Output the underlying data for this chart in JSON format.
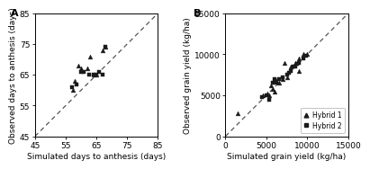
{
  "panel_A": {
    "title": "A",
    "xlabel": "Simulated days to anthesis (days)",
    "ylabel": "Observed days to anthesis (days)",
    "xlim": [
      45,
      85
    ],
    "ylim": [
      45,
      85
    ],
    "xticks": [
      45,
      55,
      65,
      75,
      85
    ],
    "yticks": [
      45,
      55,
      65,
      75,
      85
    ],
    "hybrid1_sim": [
      57.5,
      58,
      59,
      60,
      62,
      63,
      64,
      65,
      67,
      68
    ],
    "hybrid1_obs": [
      60,
      63,
      68,
      67,
      67,
      71,
      65,
      65,
      73,
      74
    ],
    "hybrid2_sim": [
      57,
      58.5,
      60,
      61,
      62.5,
      64,
      65,
      66,
      67,
      68
    ],
    "hybrid2_obs": [
      61,
      62,
      66,
      66,
      65,
      65,
      65,
      66,
      65,
      74
    ]
  },
  "panel_B": {
    "title": "B",
    "xlabel": "Simulated grain yield (kg/ha)",
    "ylabel": "Observed grain yield (kg/ha)",
    "xlim": [
      0,
      15000
    ],
    "ylim": [
      0,
      15000
    ],
    "xticks": [
      0,
      5000,
      10000,
      15000
    ],
    "yticks": [
      0,
      5000,
      10000,
      15000
    ],
    "hybrid1_sim": [
      1500,
      4600,
      5100,
      5400,
      5600,
      5800,
      6000,
      6200,
      6500,
      7000,
      7200,
      7500,
      8000,
      8500,
      9000,
      9000,
      9500,
      10000
    ],
    "hybrid1_obs": [
      2800,
      5000,
      5200,
      5000,
      6200,
      5800,
      5500,
      6800,
      6500,
      7000,
      9000,
      7200,
      8500,
      9000,
      9500,
      8000,
      10000,
      10000
    ],
    "hybrid2_sim": [
      4500,
      5000,
      5300,
      5800,
      6000,
      6200,
      6500,
      7000,
      7500,
      7800,
      8000,
      8300,
      8500,
      8800,
      9000,
      9500,
      9800
    ],
    "hybrid2_obs": [
      4800,
      5000,
      4500,
      6500,
      7000,
      6500,
      7000,
      7200,
      7500,
      7800,
      8000,
      8500,
      8500,
      8800,
      9000,
      9500,
      9800
    ]
  },
  "marker_hybrid1": "^",
  "marker_hybrid2": "s",
  "marker_size": 12,
  "marker_color": "#1a1a1a",
  "line_color": "#555555",
  "line_style": "--",
  "legend_label1": "Hybrid 1",
  "legend_label2": "Hybrid 2",
  "tick_fontsize": 6.5,
  "label_fontsize": 6.5,
  "panel_label_fontsize": 8
}
